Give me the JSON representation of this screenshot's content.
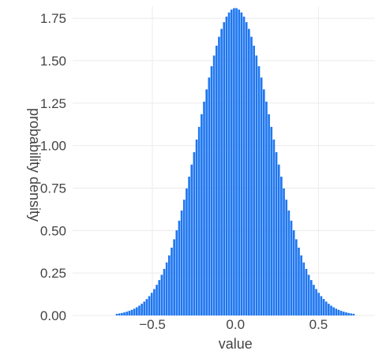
{
  "chart_data": {
    "type": "bar",
    "xlabel": "value",
    "ylabel": "probability density",
    "xlim": [
      -0.98,
      0.84
    ],
    "ylim": [
      0,
      1.82
    ],
    "x_ticks": [
      -0.5,
      0.0,
      0.5
    ],
    "x_tick_labels": [
      "−0.5",
      "0.0",
      "0.5"
    ],
    "y_ticks": [
      0,
      0.25,
      0.5,
      0.75,
      1.0,
      1.25,
      1.5,
      1.75
    ],
    "y_tick_labels": [
      "0.00",
      "0.25",
      "0.50",
      "0.75",
      "1.00",
      "1.25",
      "1.50",
      "1.75"
    ],
    "grid": true,
    "distribution": {
      "shape": "normal",
      "mean": 0.0,
      "std": 0.22,
      "peak_density": 1.81
    },
    "bins": {
      "start": -0.72,
      "end": 0.72,
      "count": 96
    },
    "bar_color": "#1f77f0"
  }
}
